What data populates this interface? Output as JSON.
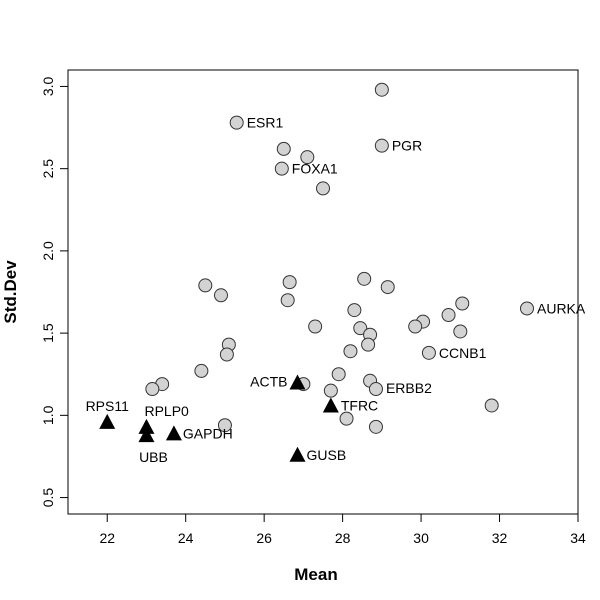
{
  "chart_data": {
    "type": "scatter",
    "xlabel": "Mean",
    "ylabel": "Std.Dev",
    "xlim": [
      21,
      34
    ],
    "ylim": [
      0.4,
      3.1
    ],
    "x_ticks": [
      22,
      24,
      26,
      28,
      30,
      32,
      34
    ],
    "y_ticks": [
      0.5,
      1.0,
      1.5,
      2.0,
      2.5,
      3.0
    ],
    "x_tick_labels": [
      "22",
      "24",
      "26",
      "28",
      "30",
      "32",
      "34"
    ],
    "y_tick_labels": [
      "0.5",
      "1.0",
      "1.5",
      "2.0",
      "2.5",
      "3.0"
    ],
    "grid": false,
    "series": [
      {
        "marker": "circle",
        "color": "#d3d3d3",
        "points": [
          {
            "x": 25.3,
            "y": 2.78,
            "label": "ESR1"
          },
          {
            "x": 29.0,
            "y": 2.98
          },
          {
            "x": 29.0,
            "y": 2.64,
            "label": "PGR"
          },
          {
            "x": 26.5,
            "y": 2.62
          },
          {
            "x": 27.1,
            "y": 2.57
          },
          {
            "x": 26.45,
            "y": 2.5,
            "label": "FOXA1"
          },
          {
            "x": 27.5,
            "y": 2.38
          },
          {
            "x": 24.5,
            "y": 1.79
          },
          {
            "x": 24.9,
            "y": 1.73
          },
          {
            "x": 26.65,
            "y": 1.81
          },
          {
            "x": 26.6,
            "y": 1.7
          },
          {
            "x": 28.55,
            "y": 1.83
          },
          {
            "x": 29.15,
            "y": 1.78
          },
          {
            "x": 28.3,
            "y": 1.64
          },
          {
            "x": 31.05,
            "y": 1.68
          },
          {
            "x": 30.7,
            "y": 1.61
          },
          {
            "x": 32.7,
            "y": 1.65,
            "label": "AURKA"
          },
          {
            "x": 30.05,
            "y": 1.57
          },
          {
            "x": 29.85,
            "y": 1.54
          },
          {
            "x": 27.3,
            "y": 1.54
          },
          {
            "x": 28.45,
            "y": 1.53
          },
          {
            "x": 28.7,
            "y": 1.49
          },
          {
            "x": 28.65,
            "y": 1.43
          },
          {
            "x": 28.2,
            "y": 1.39
          },
          {
            "x": 31.0,
            "y": 1.51
          },
          {
            "x": 30.2,
            "y": 1.38,
            "label": "CCNB1"
          },
          {
            "x": 25.1,
            "y": 1.43
          },
          {
            "x": 25.05,
            "y": 1.37
          },
          {
            "x": 24.4,
            "y": 1.27
          },
          {
            "x": 23.4,
            "y": 1.19
          },
          {
            "x": 23.15,
            "y": 1.16
          },
          {
            "x": 27.0,
            "y": 1.19
          },
          {
            "x": 27.9,
            "y": 1.25
          },
          {
            "x": 27.7,
            "y": 1.15
          },
          {
            "x": 28.7,
            "y": 1.21
          },
          {
            "x": 28.85,
            "y": 1.16,
            "label": "ERBB2"
          },
          {
            "x": 28.1,
            "y": 0.98
          },
          {
            "x": 28.85,
            "y": 0.93
          },
          {
            "x": 31.8,
            "y": 1.06
          },
          {
            "x": 25.0,
            "y": 0.94
          }
        ]
      },
      {
        "marker": "triangle",
        "color": "#000000",
        "points": [
          {
            "x": 26.85,
            "y": 1.2,
            "label": "ACTB"
          },
          {
            "x": 27.7,
            "y": 1.06,
            "label": "TFRC"
          },
          {
            "x": 22.0,
            "y": 0.96,
            "label": "RPS11"
          },
          {
            "x": 23.0,
            "y": 0.93,
            "label": "RPLP0"
          },
          {
            "x": 23.0,
            "y": 0.88,
            "label": "UBB"
          },
          {
            "x": 23.7,
            "y": 0.89,
            "label": "GAPDH"
          },
          {
            "x": 26.85,
            "y": 0.76,
            "label": "GUSB"
          }
        ]
      }
    ]
  }
}
